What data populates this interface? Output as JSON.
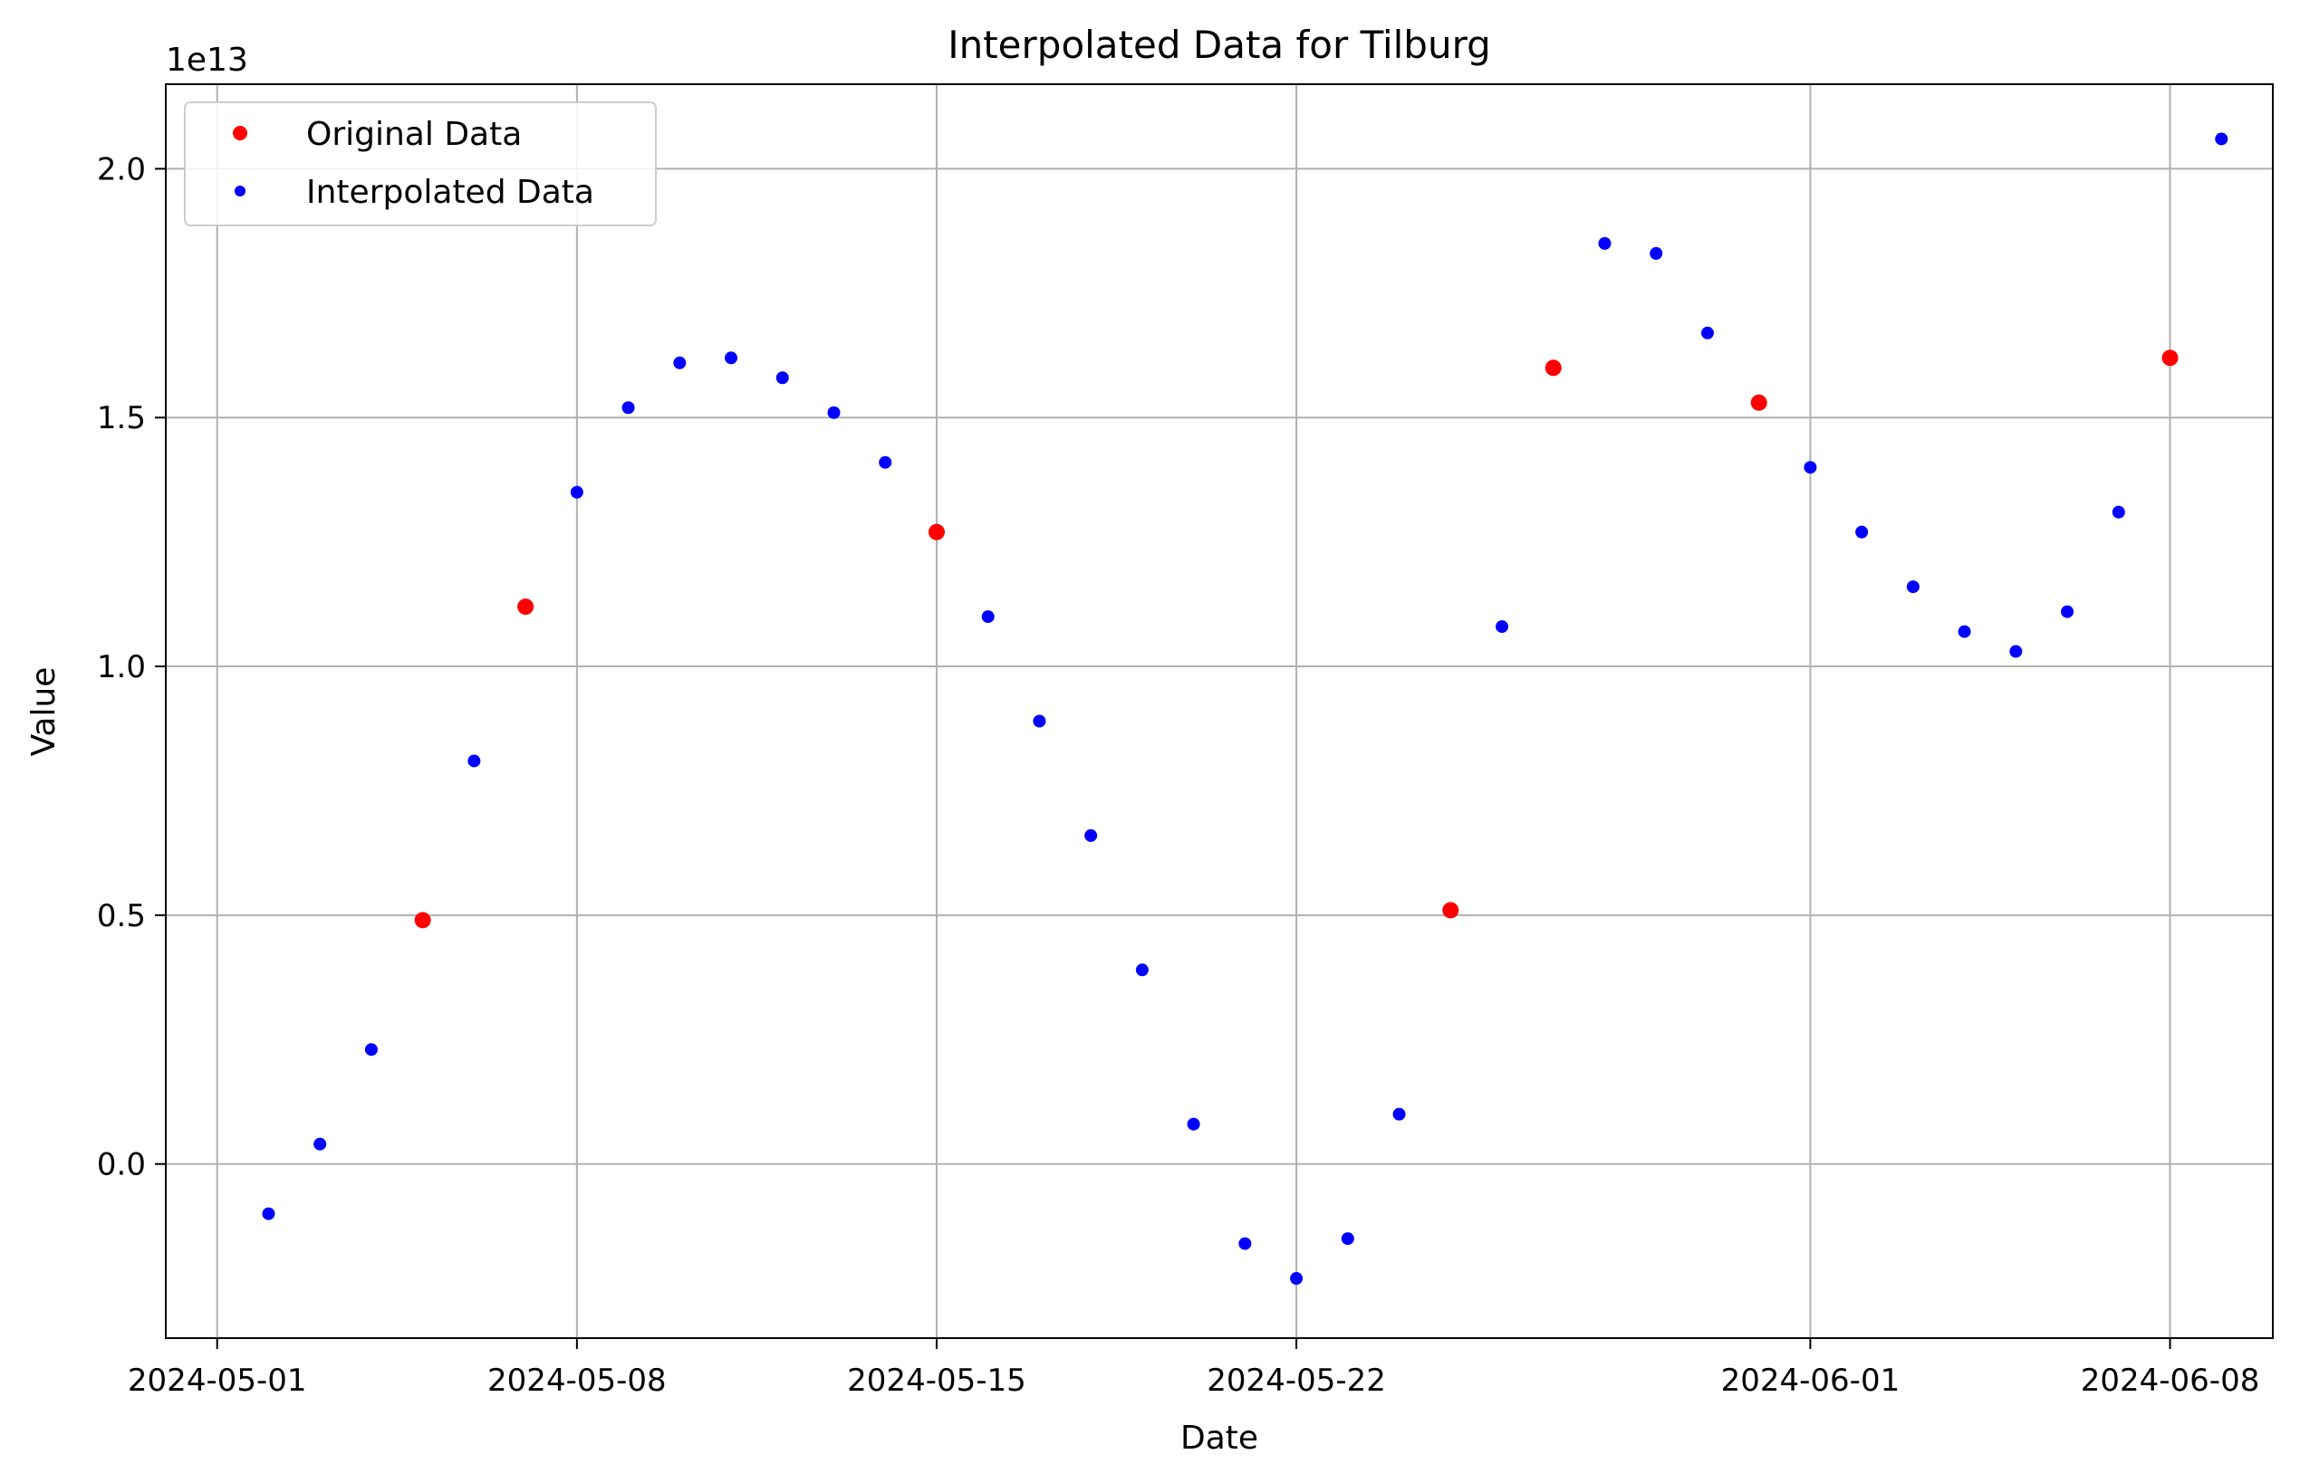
{
  "chart_data": {
    "type": "scatter",
    "title": "Interpolated Data for Tilburg",
    "xlabel": "Date",
    "ylabel": "Value",
    "y_offset_label": "1e13",
    "y_scale_multiplier": 10000000000000.0,
    "xlim": [
      "2024-04-30T00:00",
      "2024-06-10T00:00"
    ],
    "ylim": [
      -0.35,
      2.17
    ],
    "x_ticks": [
      {
        "date": "2024-05-01",
        "label": "2024-05-01"
      },
      {
        "date": "2024-05-08",
        "label": "2024-05-08"
      },
      {
        "date": "2024-05-15",
        "label": "2024-05-15"
      },
      {
        "date": "2024-05-22",
        "label": "2024-05-22"
      },
      {
        "date": "2024-06-01",
        "label": "2024-06-01"
      },
      {
        "date": "2024-06-08",
        "label": "2024-06-08"
      }
    ],
    "y_ticks": [
      {
        "value": 0.0,
        "label": "0.0"
      },
      {
        "value": 0.5,
        "label": "0.5"
      },
      {
        "value": 1.0,
        "label": "1.0"
      },
      {
        "value": 1.5,
        "label": "1.5"
      },
      {
        "value": 2.0,
        "label": "2.0"
      }
    ],
    "grid": true,
    "legend_position": "top-left",
    "series": [
      {
        "name": "Original Data",
        "color": "#ff0000",
        "marker": "large-dot",
        "x": [
          "2024-05-05",
          "2024-05-07",
          "2024-05-15",
          "2024-05-25",
          "2024-05-27",
          "2024-05-31",
          "2024-06-08"
        ],
        "y": [
          0.49,
          1.12,
          1.27,
          0.51,
          1.6,
          1.53,
          1.62
        ]
      },
      {
        "name": "Interpolated Data",
        "color": "#0000ff",
        "marker": "small-dot",
        "x": [
          "2024-05-02",
          "2024-05-03",
          "2024-05-04",
          "2024-05-06",
          "2024-05-08",
          "2024-05-09",
          "2024-05-10",
          "2024-05-11",
          "2024-05-12",
          "2024-05-13",
          "2024-05-14",
          "2024-05-16",
          "2024-05-17",
          "2024-05-18",
          "2024-05-19",
          "2024-05-20",
          "2024-05-21",
          "2024-05-22",
          "2024-05-23",
          "2024-05-24",
          "2024-05-26",
          "2024-05-28",
          "2024-05-29",
          "2024-05-30",
          "2024-06-01",
          "2024-06-02",
          "2024-06-03",
          "2024-06-04",
          "2024-06-05",
          "2024-06-06",
          "2024-06-07",
          "2024-06-09"
        ],
        "y": [
          -0.1,
          0.04,
          0.23,
          0.81,
          1.35,
          1.52,
          1.61,
          1.62,
          1.58,
          1.51,
          1.41,
          1.1,
          0.89,
          0.66,
          0.39,
          0.08,
          -0.16,
          -0.23,
          -0.15,
          0.1,
          1.08,
          1.85,
          1.83,
          1.67,
          1.4,
          1.27,
          1.16,
          1.07,
          1.03,
          1.11,
          1.31,
          2.06
        ]
      }
    ]
  }
}
